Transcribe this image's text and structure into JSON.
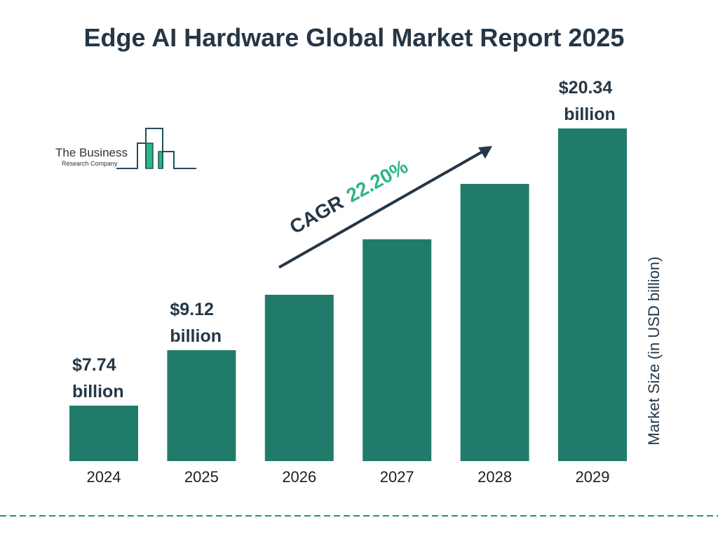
{
  "chart_data": {
    "type": "bar",
    "title": "Edge AI Hardware Global Market Report 2025",
    "categories": [
      "2024",
      "2025",
      "2026",
      "2027",
      "2028",
      "2029"
    ],
    "values": [
      7.74,
      9.12,
      null,
      null,
      null,
      20.34
    ],
    "data_labels": [
      "$7.74\nbillion",
      "$9.12\nbillion",
      "",
      "",
      "",
      "$20.34\nbillion"
    ],
    "ylabel": "Market Size (in USD billion)",
    "xlabel": "",
    "grid": false,
    "annotation": {
      "prefix": "CAGR",
      "value": "22.20%"
    },
    "colors": {
      "bar": "#217b6b",
      "text": "#253746",
      "cagr": "#2eb683",
      "divider": "#2a8a8a"
    }
  },
  "logo": {
    "line1": "The Business",
    "line2": "Research Company"
  }
}
